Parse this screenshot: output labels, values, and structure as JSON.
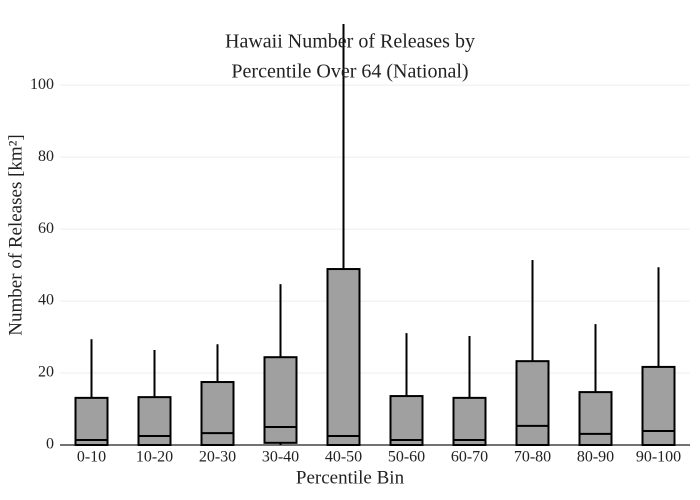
{
  "chart_data": {
    "type": "box",
    "title": [
      "Hawaii Number of Releases by",
      "Percentile Over 64 (National)"
    ],
    "x_label": "Percentile Bin",
    "y_label": "Number of Releases  [km²]",
    "categories": [
      "0-10",
      "10-20",
      "20-30",
      "30-40",
      "40-50",
      "50-60",
      "60-70",
      "70-80",
      "80-90",
      "90-100"
    ],
    "low": [
      0,
      0,
      0,
      0,
      0,
      0,
      0,
      0,
      0,
      0
    ],
    "q1": [
      0,
      0,
      0,
      0.6,
      0,
      0,
      0,
      0,
      0,
      0
    ],
    "median": [
      1.4,
      2.5,
      3.3,
      5,
      2.5,
      1.4,
      1.4,
      5.3,
      3.1,
      3.9
    ],
    "q3": [
      13.1,
      13.3,
      17.5,
      24.4,
      48.9,
      13.6,
      13.1,
      23.3,
      14.7,
      21.7
    ],
    "high": [
      29.4,
      26.4,
      28,
      44.7,
      117,
      31.1,
      30.3,
      51.4,
      33.6,
      49.4
    ],
    "color": "#a0a0a0",
    "ylim": [
      0,
      117
    ],
    "yticks": [
      0,
      20,
      40,
      60,
      80,
      100
    ],
    "grid": true
  }
}
